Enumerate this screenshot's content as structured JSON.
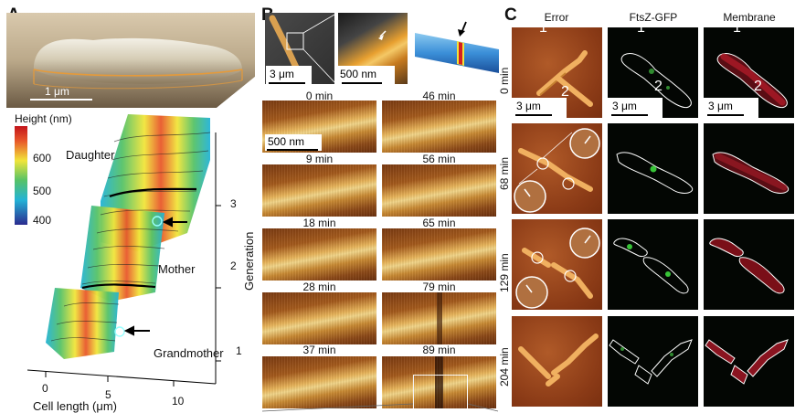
{
  "panels": {
    "a": "A",
    "b": "B",
    "c": "C"
  },
  "panel_a": {
    "scalebar_top": "1 μm",
    "colorbar_title": "Height (nm)",
    "colorbar_ticks": [
      "600",
      "500",
      "400"
    ],
    "labels": {
      "daughter": "Daughter",
      "mother": "Mother",
      "grandmother": "Grandmother"
    },
    "generation_label": "Generation",
    "generation_ticks": [
      "3",
      "2",
      "1"
    ],
    "x_ticks": [
      "0",
      "5",
      "10"
    ],
    "x_label": "Cell length (μm)",
    "colors": {
      "red": "#c3141b",
      "yellow": "#f1e53a",
      "green": "#56c267",
      "cyan": "#23b3d6",
      "blue": "#2b2c8f"
    }
  },
  "panel_b": {
    "scalebar_1": "3 μm",
    "scalebar_2": "500 nm",
    "scalebar_3": "500 nm",
    "times_left": [
      "0 min",
      "9 min",
      "18 min",
      "28 min",
      "37 min"
    ],
    "times_right": [
      "46 min",
      "56 min",
      "65 min",
      "79 min",
      "89 min"
    ]
  },
  "panel_c": {
    "columns": [
      "Error",
      "FtsZ-GFP",
      "Membrane"
    ],
    "rows": [
      "0 min",
      "68 min",
      "129 min",
      "204 min"
    ],
    "cell_labels": [
      "1",
      "2"
    ],
    "scalebar": "3 μm"
  }
}
